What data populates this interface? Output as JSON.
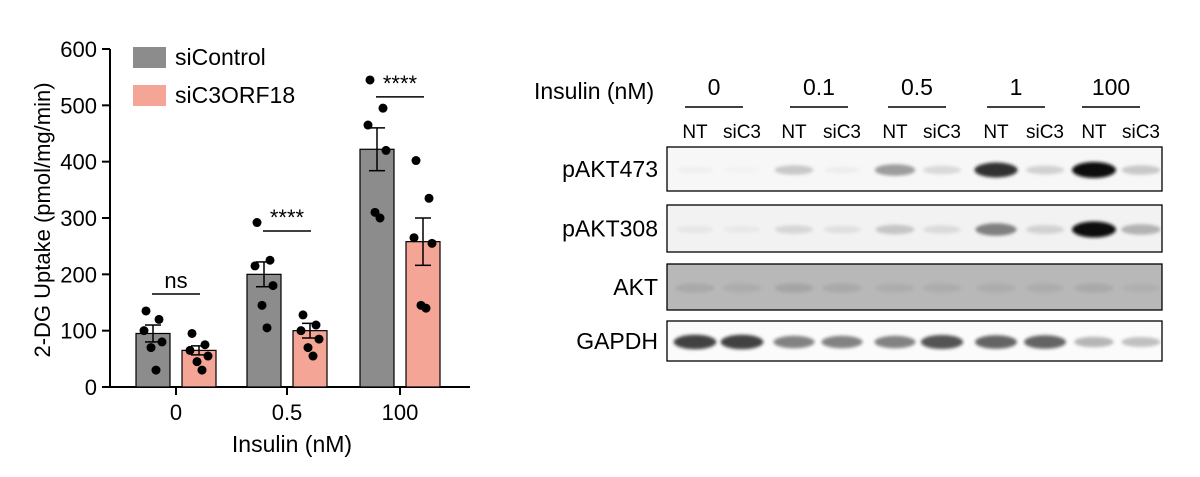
{
  "chart_data": [
    {
      "type": "bar",
      "title": "",
      "xlabel": "Insulin (nM)",
      "ylabel": "2-DG Uptake (pmol/mg/min)",
      "categories": [
        "0",
        "0.5",
        "100"
      ],
      "ylim": [
        0,
        600
      ],
      "yticks": [
        "0",
        "100",
        "200",
        "300",
        "400",
        "500",
        "600"
      ],
      "legend_position": "top-left",
      "grid": false,
      "series": [
        {
          "name": "siControl",
          "color": "#8c8c8c",
          "values": [
            95,
            200,
            422
          ],
          "sem": [
            15,
            22,
            38
          ],
          "points": [
            [
              135,
              120,
              100,
              80,
              70,
              30
            ],
            [
              292,
              225,
              215,
              180,
              145,
              105
            ],
            [
              545,
              495,
              465,
              420,
              310,
              300
            ]
          ]
        },
        {
          "name": "siC3ORF18",
          "color": "#f4a596",
          "values": [
            65,
            100,
            258
          ],
          "sem": [
            8,
            13,
            42
          ],
          "points": [
            [
              95,
              75,
              65,
              55,
              45,
              30
            ],
            [
              128,
              110,
              100,
              85,
              70,
              55
            ],
            [
              402,
              335,
              265,
              255,
              145,
              140
            ]
          ]
        }
      ],
      "annotations": [
        "ns",
        "****",
        "****"
      ]
    },
    {
      "type": "table",
      "header_label": "Insulin (nM)",
      "concentrations": [
        "0",
        "0.1",
        "0.5",
        "1",
        "100"
      ],
      "lane_labels": [
        "NT",
        "siC3",
        "NT",
        "siC3",
        "NT",
        "siC3",
        "NT",
        "siC3",
        "NT",
        "siC3"
      ],
      "blots": [
        {
          "label": "pAKT473",
          "intensities": [
            0.06,
            0.02,
            0.35,
            0.08,
            0.55,
            0.25,
            0.9,
            0.3,
            1.0,
            0.35
          ],
          "background": "#f7f7f7"
        },
        {
          "label": "pAKT308",
          "intensities": [
            0.12,
            0.1,
            0.25,
            0.18,
            0.35,
            0.22,
            0.65,
            0.28,
            1.0,
            0.45
          ],
          "background": "#f2f2f2"
        },
        {
          "label": "AKT",
          "intensities": [
            0.35,
            0.33,
            0.38,
            0.35,
            0.33,
            0.33,
            0.33,
            0.33,
            0.35,
            0.3
          ],
          "background": "#b8b8b8"
        },
        {
          "label": "GAPDH",
          "intensities": [
            0.85,
            0.85,
            0.65,
            0.65,
            0.65,
            0.8,
            0.75,
            0.75,
            0.45,
            0.4
          ],
          "background": "#fbfbfb"
        }
      ]
    }
  ]
}
